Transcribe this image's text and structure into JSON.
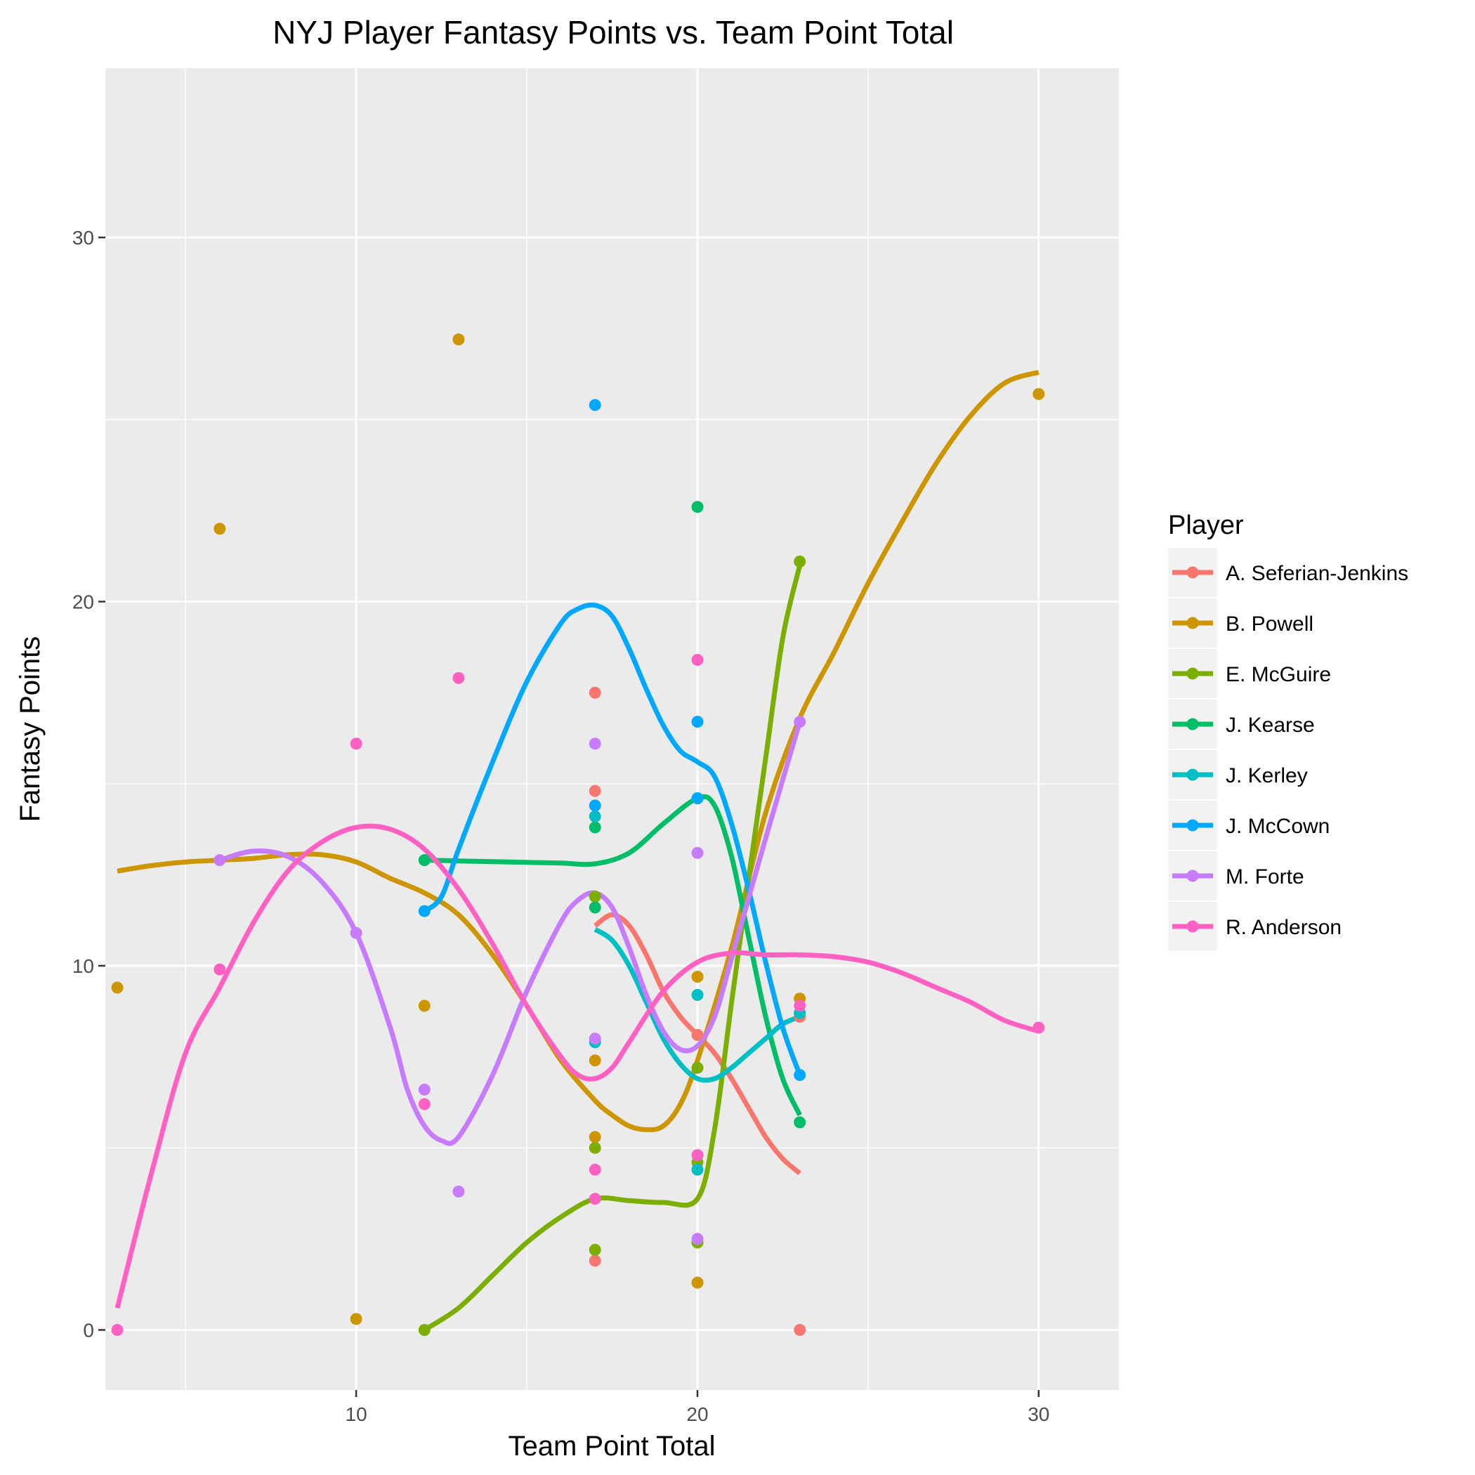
{
  "chart_data": {
    "type": "scatter",
    "title": "NYJ Player Fantasy Points vs. Team Point Total",
    "xlabel": "Team Point Total",
    "ylabel": "Fantasy Points",
    "xlim": [
      2.65,
      32.35
    ],
    "ylim": [
      -1.65,
      34.65
    ],
    "xticks": [
      10,
      20,
      30
    ],
    "yticks": [
      0,
      10,
      20,
      30
    ],
    "grid": true,
    "legend_title": "Player",
    "legend_position": "right",
    "smoothing": "loess",
    "series": [
      {
        "name": "A. Seferian-Jenkins",
        "color": "#F8766D",
        "points": [
          [
            17,
            1.9
          ],
          [
            17,
            14.8
          ],
          [
            17,
            17.5
          ],
          [
            20,
            8.1
          ],
          [
            23,
            0
          ],
          [
            23,
            8.6
          ]
        ],
        "curve": [
          [
            17,
            11.1
          ],
          [
            17.5,
            11.4
          ],
          [
            18,
            11.1
          ],
          [
            18.5,
            10.3
          ],
          [
            19,
            9.3
          ],
          [
            19.5,
            8.6
          ],
          [
            20,
            8.1
          ],
          [
            20.5,
            7.6
          ],
          [
            21,
            6.9
          ],
          [
            21.5,
            6.1
          ],
          [
            22,
            5.3
          ],
          [
            22.5,
            4.7
          ],
          [
            23,
            4.3
          ]
        ]
      },
      {
        "name": "B. Powell",
        "color": "#CD9600",
        "points": [
          [
            3,
            9.4
          ],
          [
            6,
            22
          ],
          [
            10,
            0.3
          ],
          [
            12,
            8.9
          ],
          [
            13,
            27.2
          ],
          [
            17,
            5.3
          ],
          [
            17,
            7.4
          ],
          [
            20,
            1.3
          ],
          [
            20,
            9.7
          ],
          [
            23,
            9.1
          ],
          [
            23,
            8.7
          ],
          [
            30,
            25.7
          ]
        ],
        "curve": [
          [
            3,
            12.6
          ],
          [
            4,
            12.75
          ],
          [
            5,
            12.85
          ],
          [
            6,
            12.9
          ],
          [
            7,
            12.95
          ],
          [
            8,
            13.05
          ],
          [
            9,
            13.05
          ],
          [
            10,
            12.85
          ],
          [
            11,
            12.4
          ],
          [
            12,
            12.0
          ],
          [
            13,
            11.4
          ],
          [
            14,
            10.3
          ],
          [
            15,
            8.9
          ],
          [
            16,
            7.4
          ],
          [
            17,
            6.3
          ],
          [
            17.5,
            5.9
          ],
          [
            18,
            5.6
          ],
          [
            18.5,
            5.5
          ],
          [
            19,
            5.6
          ],
          [
            19.5,
            6.2
          ],
          [
            20,
            7.4
          ],
          [
            21,
            10.5
          ],
          [
            22,
            14.2
          ],
          [
            23,
            16.8
          ],
          [
            24,
            18.6
          ],
          [
            25,
            20.5
          ],
          [
            26,
            22.2
          ],
          [
            27,
            23.8
          ],
          [
            28,
            25.1
          ],
          [
            29,
            26.0
          ],
          [
            30,
            26.3
          ]
        ]
      },
      {
        "name": "E. McGuire",
        "color": "#7CAE00",
        "points": [
          [
            12,
            0
          ],
          [
            17,
            2.2
          ],
          [
            17,
            5
          ],
          [
            17,
            11.9
          ],
          [
            20,
            2.4
          ],
          [
            20,
            4.6
          ],
          [
            20,
            7.2
          ],
          [
            23,
            21.1
          ]
        ],
        "curve": [
          [
            12,
            0
          ],
          [
            13,
            0.6
          ],
          [
            14,
            1.5
          ],
          [
            15,
            2.4
          ],
          [
            16,
            3.1
          ],
          [
            17,
            3.6
          ],
          [
            18,
            3.55
          ],
          [
            19,
            3.5
          ],
          [
            20,
            3.6
          ],
          [
            20.5,
            5.5
          ],
          [
            21,
            9.0
          ],
          [
            21.5,
            12.4
          ],
          [
            22,
            15.7
          ],
          [
            22.5,
            19.0
          ],
          [
            23,
            21.0
          ]
        ]
      },
      {
        "name": "J. Kearse",
        "color": "#00BE67",
        "points": [
          [
            12,
            12.9
          ],
          [
            17,
            13.8
          ],
          [
            17,
            11.6
          ],
          [
            20,
            22.6
          ],
          [
            20,
            14.6
          ],
          [
            23,
            5.7
          ]
        ],
        "curve": [
          [
            12,
            12.9
          ],
          [
            13,
            12.88
          ],
          [
            14,
            12.86
          ],
          [
            15,
            12.84
          ],
          [
            16,
            12.82
          ],
          [
            17,
            12.8
          ],
          [
            18,
            13.1
          ],
          [
            19,
            13.9
          ],
          [
            20,
            14.6
          ],
          [
            20.5,
            14.4
          ],
          [
            21,
            13.0
          ],
          [
            21.5,
            10.8
          ],
          [
            22,
            8.6
          ],
          [
            22.5,
            6.9
          ],
          [
            23,
            5.9
          ]
        ]
      },
      {
        "name": "J. Kerley",
        "color": "#00BFC4",
        "points": [
          [
            17,
            14.1
          ],
          [
            17,
            7.9
          ],
          [
            20,
            9.2
          ],
          [
            20,
            4.4
          ],
          [
            23,
            8.7
          ]
        ],
        "curve": [
          [
            17,
            11.0
          ],
          [
            17.5,
            10.7
          ],
          [
            18,
            10.0
          ],
          [
            18.5,
            9.0
          ],
          [
            19,
            8.0
          ],
          [
            19.5,
            7.3
          ],
          [
            20,
            6.9
          ],
          [
            20.5,
            6.9
          ],
          [
            21,
            7.2
          ],
          [
            21.5,
            7.6
          ],
          [
            22,
            8.0
          ],
          [
            22.5,
            8.4
          ],
          [
            23,
            8.6
          ]
        ]
      },
      {
        "name": "J. McCown",
        "color": "#00A9FF",
        "points": [
          [
            12,
            11.5
          ],
          [
            17,
            25.4
          ],
          [
            17,
            14.4
          ],
          [
            20,
            16.7
          ],
          [
            20,
            14.6
          ],
          [
            23,
            7
          ]
        ],
        "curve": [
          [
            12,
            11.5
          ],
          [
            12.5,
            11.9
          ],
          [
            13,
            13.2
          ],
          [
            14,
            15.6
          ],
          [
            15,
            17.8
          ],
          [
            16,
            19.4
          ],
          [
            16.5,
            19.8
          ],
          [
            17,
            19.9
          ],
          [
            17.5,
            19.6
          ],
          [
            18,
            18.7
          ],
          [
            18.5,
            17.6
          ],
          [
            19,
            16.6
          ],
          [
            19.5,
            15.9
          ],
          [
            20,
            15.6
          ],
          [
            20.5,
            15.2
          ],
          [
            21,
            13.9
          ],
          [
            21.5,
            12.1
          ],
          [
            22,
            10.1
          ],
          [
            22.5,
            8.3
          ],
          [
            23,
            7.0
          ]
        ]
      },
      {
        "name": "M. Forte",
        "color": "#C77CFF",
        "points": [
          [
            6,
            12.9
          ],
          [
            10,
            10.9
          ],
          [
            12,
            6.6
          ],
          [
            13,
            3.8
          ],
          [
            17,
            16.1
          ],
          [
            17,
            8
          ],
          [
            20,
            13.1
          ],
          [
            20,
            2.5
          ],
          [
            23,
            16.7
          ]
        ],
        "curve": [
          [
            6,
            12.9
          ],
          [
            7,
            13.15
          ],
          [
            8,
            13.0
          ],
          [
            9,
            12.3
          ],
          [
            10,
            10.9
          ],
          [
            11,
            8.3
          ],
          [
            11.5,
            6.6
          ],
          [
            12,
            5.6
          ],
          [
            12.5,
            5.2
          ],
          [
            13,
            5.3
          ],
          [
            14,
            7.0
          ],
          [
            15,
            9.3
          ],
          [
            16,
            11.2
          ],
          [
            16.5,
            11.8
          ],
          [
            17,
            12.0
          ],
          [
            17.5,
            11.6
          ],
          [
            18,
            10.5
          ],
          [
            18.5,
            9.2
          ],
          [
            19,
            8.2
          ],
          [
            19.5,
            7.7
          ],
          [
            20,
            7.8
          ],
          [
            20.5,
            8.6
          ],
          [
            21,
            10.2
          ],
          [
            22,
            13.5
          ],
          [
            23,
            16.7
          ]
        ]
      },
      {
        "name": "R. Anderson",
        "color": "#FF61C3",
        "points": [
          [
            3,
            0
          ],
          [
            6,
            9.9
          ],
          [
            10,
            16.1
          ],
          [
            12,
            6.2
          ],
          [
            13,
            17.9
          ],
          [
            17,
            4.4
          ],
          [
            17,
            3.6
          ],
          [
            20,
            18.4
          ],
          [
            20,
            4.8
          ],
          [
            23,
            8.9
          ],
          [
            30,
            8.3
          ]
        ],
        "curve": [
          [
            3,
            0.6
          ],
          [
            4,
            4.3
          ],
          [
            5,
            7.6
          ],
          [
            6,
            9.4
          ],
          [
            7,
            11.2
          ],
          [
            8,
            12.6
          ],
          [
            9,
            13.4
          ],
          [
            10,
            13.8
          ],
          [
            11,
            13.75
          ],
          [
            12,
            13.2
          ],
          [
            13,
            12.1
          ],
          [
            14,
            10.6
          ],
          [
            15,
            8.9
          ],
          [
            16,
            7.5
          ],
          [
            16.5,
            7.0
          ],
          [
            17,
            6.9
          ],
          [
            17.5,
            7.2
          ],
          [
            18,
            7.9
          ],
          [
            19,
            9.3
          ],
          [
            20,
            10.1
          ],
          [
            21,
            10.35
          ],
          [
            22,
            10.3
          ],
          [
            23,
            10.3
          ],
          [
            24,
            10.25
          ],
          [
            25,
            10.1
          ],
          [
            26,
            9.8
          ],
          [
            27,
            9.4
          ],
          [
            28,
            9.0
          ],
          [
            29,
            8.5
          ],
          [
            30,
            8.2
          ]
        ]
      }
    ]
  }
}
